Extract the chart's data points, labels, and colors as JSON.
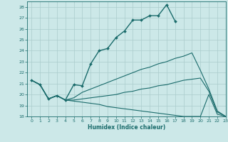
{
  "xlabel": "Humidex (Indice chaleur)",
  "bg_color": "#cce8e8",
  "grid_color": "#aacccc",
  "line_color": "#1a6b6b",
  "xlim": [
    -0.5,
    23
  ],
  "ylim": [
    18,
    28.5
  ],
  "yticks": [
    18,
    19,
    20,
    21,
    22,
    23,
    24,
    25,
    26,
    27,
    28
  ],
  "xticks": [
    0,
    1,
    2,
    3,
    4,
    5,
    6,
    7,
    8,
    9,
    10,
    11,
    12,
    13,
    14,
    15,
    16,
    17,
    18,
    19,
    20,
    21,
    22,
    23
  ],
  "main_x": [
    0,
    1,
    2,
    3,
    4,
    5,
    6,
    7,
    8,
    9,
    10,
    11,
    12,
    13,
    14,
    15,
    16,
    17
  ],
  "main_y": [
    21.3,
    20.9,
    19.6,
    19.9,
    19.5,
    20.9,
    20.8,
    22.8,
    24.0,
    24.2,
    25.2,
    25.8,
    26.8,
    26.8,
    27.2,
    27.2,
    28.2,
    26.7
  ],
  "line2_x": [
    0,
    1,
    2,
    3,
    4,
    5,
    6,
    7,
    8,
    9,
    10,
    11,
    12,
    13,
    14,
    15,
    16,
    17,
    18,
    19,
    20,
    21,
    22,
    23
  ],
  "line2_y": [
    21.3,
    20.9,
    19.6,
    19.9,
    19.5,
    19.7,
    20.2,
    20.5,
    20.8,
    21.1,
    21.4,
    21.7,
    22.0,
    22.3,
    22.5,
    22.8,
    23.0,
    23.3,
    23.5,
    23.8,
    22.2,
    20.5,
    18.5,
    18.0
  ],
  "line3_x": [
    0,
    1,
    2,
    3,
    4,
    5,
    6,
    7,
    8,
    9,
    10,
    11,
    12,
    13,
    14,
    15,
    16,
    17,
    18,
    19,
    20,
    21,
    22,
    23
  ],
  "line3_y": [
    21.3,
    20.9,
    19.6,
    19.9,
    19.5,
    19.5,
    19.6,
    19.7,
    19.8,
    19.9,
    20.0,
    20.2,
    20.3,
    20.5,
    20.6,
    20.8,
    20.9,
    21.1,
    21.3,
    21.4,
    21.5,
    20.3,
    18.4,
    18.0
  ],
  "line4_x": [
    0,
    1,
    2,
    3,
    4,
    5,
    6,
    7,
    8,
    9,
    10,
    11,
    12,
    13,
    14,
    15,
    16,
    17,
    18,
    19,
    20,
    21,
    22,
    23
  ],
  "line4_y": [
    21.3,
    20.9,
    19.6,
    19.9,
    19.5,
    19.4,
    19.3,
    19.2,
    19.1,
    18.9,
    18.8,
    18.7,
    18.6,
    18.5,
    18.4,
    18.3,
    18.2,
    18.1,
    18.0,
    18.0,
    18.0,
    20.0,
    18.2,
    18.0
  ]
}
